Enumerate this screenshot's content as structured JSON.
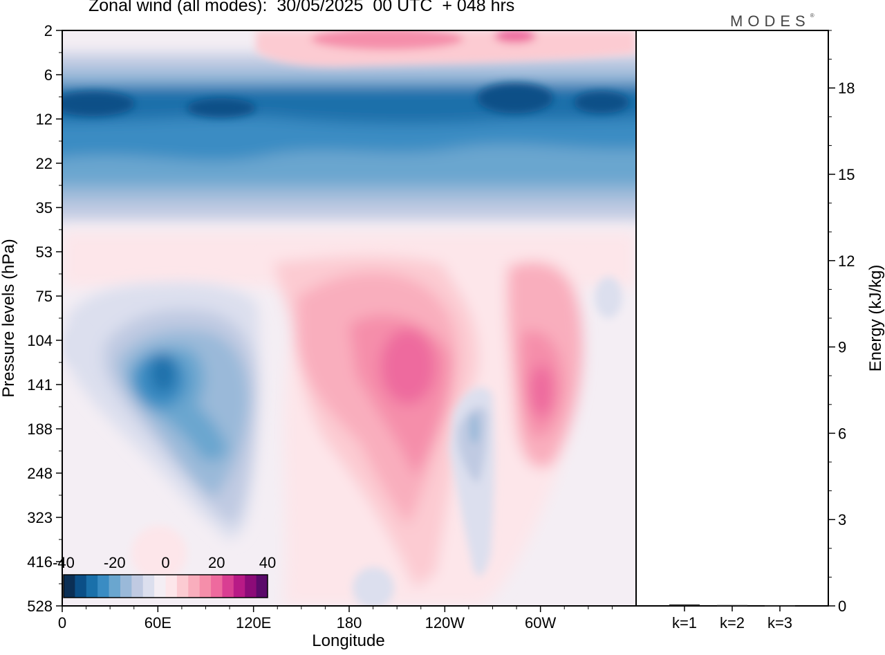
{
  "header": {
    "title": "Zonal wind (all modes):  30/05/2025  00 UTC  + 048 hrs",
    "brand": "MODES",
    "brand_mark": "®"
  },
  "chart_data": [
    {
      "type": "heatmap",
      "title": "Zonal wind (all modes):  30/05/2025  00 UTC  + 048 hrs",
      "xlabel": "Longitude",
      "ylabel": "Pressure levels (hPa)",
      "x_ticks": [
        "0",
        "60E",
        "120E",
        "180",
        "120W",
        "60W"
      ],
      "y_ticks": [
        "2",
        "6",
        "12",
        "22",
        "35",
        "53",
        "75",
        "104",
        "141",
        "188",
        "248",
        "323",
        "416",
        "528"
      ],
      "colorbar": {
        "ticks": [
          "-40",
          "-20",
          "0",
          "20",
          "40"
        ],
        "range": [
          -40,
          40
        ],
        "colors": [
          "#0b2f55",
          "#0b4f87",
          "#1a70aa",
          "#3a8cc3",
          "#6aa6cf",
          "#9ab9d9",
          "#c0cae2",
          "#dcdfee",
          "#f4eef4",
          "#fde6ea",
          "#fccbd2",
          "#f9aebd",
          "#f58eaa",
          "#ee6a9e",
          "#d93e92",
          "#b81a86",
          "#8c0b78",
          "#5b0a6a"
        ]
      },
      "features": [
        {
          "lon": 20,
          "level": 10,
          "value": -30
        },
        {
          "lon": 110,
          "level": 10,
          "value": -32
        },
        {
          "lon": 250,
          "level": 8,
          "value": -34
        },
        {
          "lon": 200,
          "level": 2,
          "value": 22
        },
        {
          "lon": 70,
          "level": 132,
          "value": -38
        },
        {
          "lon": 80,
          "level": 170,
          "value": -28
        },
        {
          "lon": 178,
          "level": 132,
          "value": 28
        },
        {
          "lon": 212,
          "level": 132,
          "value": 22
        },
        {
          "lon": 305,
          "level": 132,
          "value": 20
        },
        {
          "lon": 240,
          "level": 230,
          "value": -12
        }
      ]
    },
    {
      "type": "bar",
      "categories": [
        "k=1",
        "k=2",
        "k=3"
      ],
      "values": [
        0.05,
        0.03,
        0.02
      ],
      "ylabel": "Energy (kJ/kg)",
      "ylim": [
        0,
        20
      ],
      "y_ticks": [
        "0",
        "3",
        "6",
        "9",
        "12",
        "15",
        "18"
      ]
    }
  ]
}
